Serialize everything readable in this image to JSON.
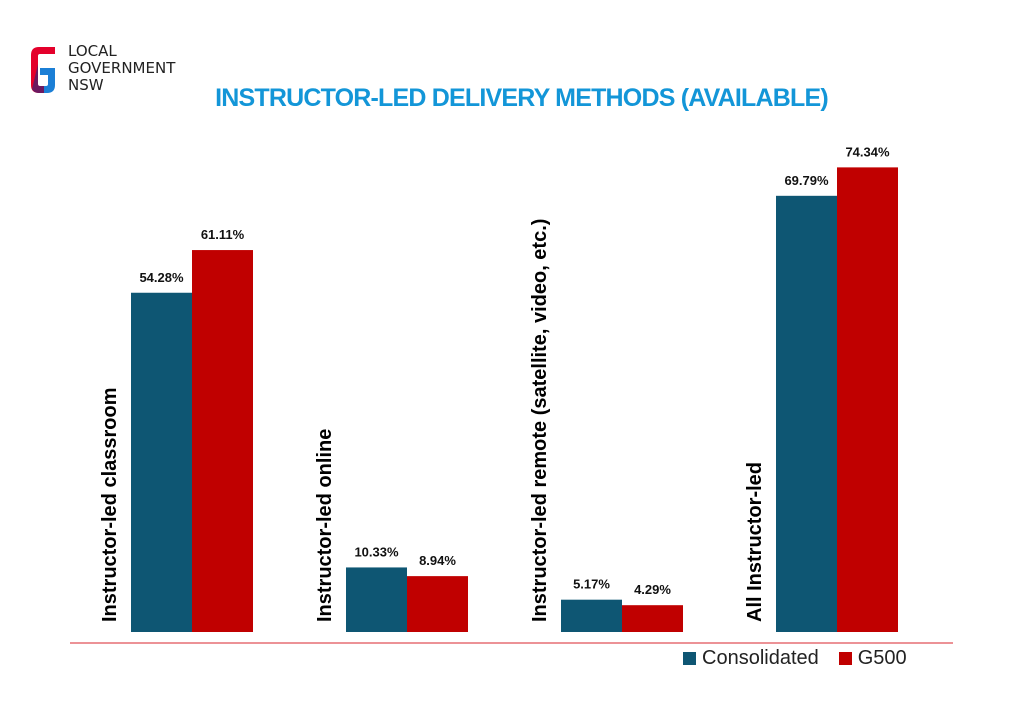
{
  "logo": {
    "lines": [
      "LOCAL",
      "GOVERNMENT",
      "NSW"
    ],
    "colors": {
      "red": "#e4002b",
      "blue": "#1b7fd6",
      "navy": "#0a2d8c"
    }
  },
  "colors": {
    "title": "#1396d8",
    "consolidated": "#0e5673",
    "g500": "#c00000",
    "axis": "#d9262c"
  },
  "chart_data": {
    "type": "bar",
    "title": "INSTRUCTOR-LED  DELIVERY  METHODS  (AVAILABLE)",
    "categories": [
      "Instructor-led classroom",
      "Instructor-led online",
      "Instructor-led remote (satellite, video, etc.)",
      "All Instructor-led"
    ],
    "series": [
      {
        "name": "Consolidated",
        "values": [
          54.28,
          10.33,
          5.17,
          69.79
        ],
        "labels": [
          "54.28%",
          "10.33%",
          "5.17%",
          "69.79%"
        ]
      },
      {
        "name": "G500",
        "values": [
          61.11,
          8.94,
          4.29,
          74.34
        ],
        "labels": [
          "61.11%",
          "8.94%",
          "4.29%",
          "74.34%"
        ]
      }
    ],
    "ylim": [
      0,
      80
    ],
    "grid": false,
    "legend_position": "bottom-right"
  }
}
